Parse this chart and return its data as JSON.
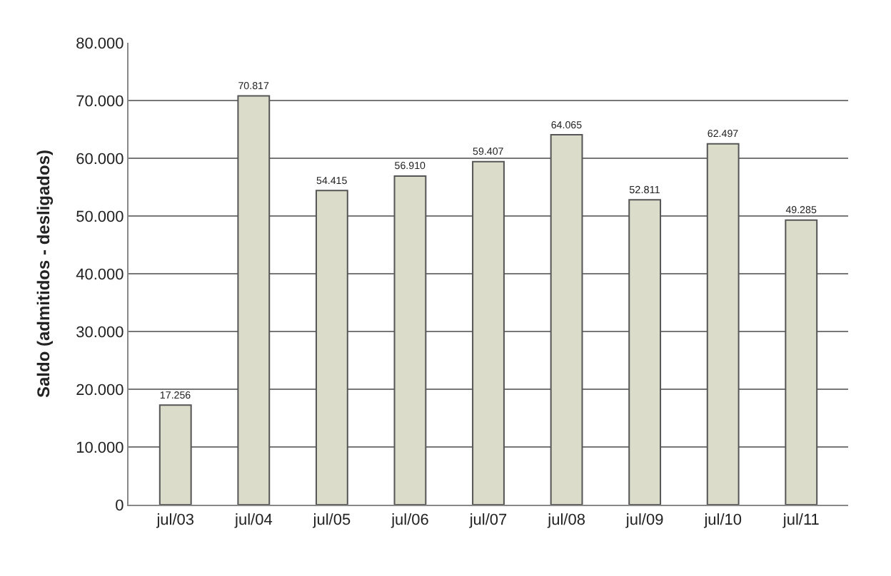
{
  "chart_data": {
    "type": "bar",
    "ylabel": "Saldo (admitidos - desligados)",
    "categories": [
      "jul/03",
      "jul/04",
      "jul/05",
      "jul/06",
      "jul/07",
      "jul/08",
      "jul/09",
      "jul/10",
      "jul/11"
    ],
    "values": [
      17256,
      70817,
      54415,
      56910,
      59407,
      64065,
      52811,
      62497,
      49285
    ],
    "value_labels": [
      "17.256",
      "70.817",
      "54.415",
      "56.910",
      "59.407",
      "64.065",
      "52.811",
      "62.497",
      "49.285"
    ],
    "color": "#dcdccb",
    "ylim": [
      0,
      80000
    ],
    "yticks": [
      {
        "value": 0,
        "label": "0"
      },
      {
        "value": 10000,
        "label": "10.000"
      },
      {
        "value": 20000,
        "label": "20.000"
      },
      {
        "value": 30000,
        "label": "30.000"
      },
      {
        "value": 40000,
        "label": "40.000"
      },
      {
        "value": 50000,
        "label": "50.000"
      },
      {
        "value": 60000,
        "label": "60.000"
      },
      {
        "value": 70000,
        "label": "70.000"
      },
      {
        "value": 80000,
        "label": "80.000"
      }
    ],
    "grid": "y"
  }
}
